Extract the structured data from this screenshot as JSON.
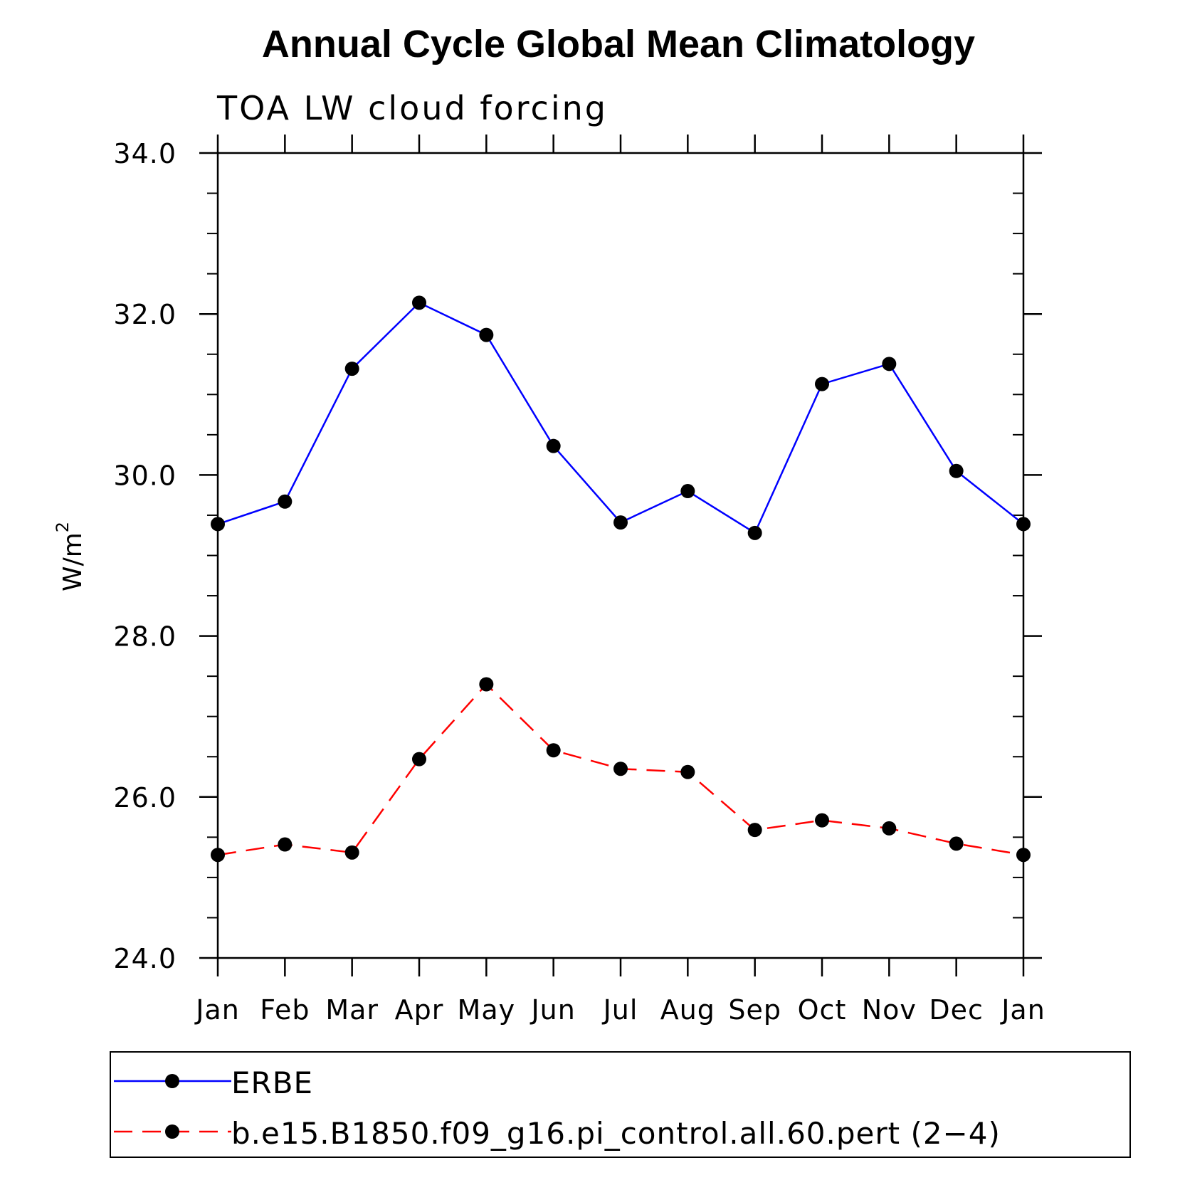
{
  "chart_data": {
    "type": "line",
    "title": "Annual Cycle Global Mean Climatology",
    "subtitle": "TOA LW cloud forcing",
    "ylabel": "W/m",
    "ylabel_superscript": "2",
    "xlabel": "",
    "categories": [
      "Jan",
      "Feb",
      "Mar",
      "Apr",
      "May",
      "Jun",
      "Jul",
      "Aug",
      "Sep",
      "Oct",
      "Nov",
      "Dec",
      "Jan"
    ],
    "ylim": [
      24.0,
      34.0
    ],
    "yticks": [
      24.0,
      26.0,
      28.0,
      30.0,
      32.0,
      34.0
    ],
    "ytick_labels": [
      "24.0",
      "26.0",
      "28.0",
      "30.0",
      "32.0",
      "34.0"
    ],
    "y_minor_step": 0.5,
    "grid": false,
    "legend_position": "bottom",
    "series": [
      {
        "name": "ERBE",
        "color": "#0000ff",
        "dash": "solid",
        "marker": "filled-circle",
        "values": [
          29.39,
          29.67,
          31.32,
          32.14,
          31.74,
          30.36,
          29.41,
          29.8,
          29.28,
          31.13,
          31.38,
          30.05,
          29.39
        ]
      },
      {
        "name": "b.e15.B1850.f09_g16.pi_control.all.60.pert (2−4)",
        "color": "#ff0000",
        "dash": "dashed",
        "marker": "filled-circle",
        "values": [
          25.28,
          25.41,
          25.31,
          26.47,
          27.4,
          26.58,
          26.35,
          26.31,
          25.59,
          25.71,
          25.61,
          25.42,
          25.28
        ]
      }
    ]
  }
}
